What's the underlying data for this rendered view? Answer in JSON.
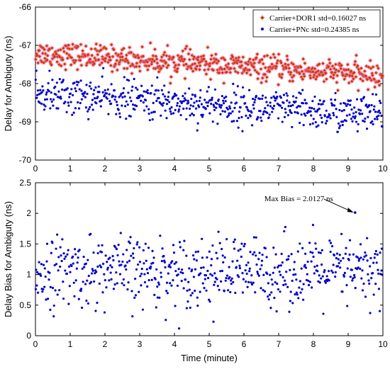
{
  "chart_data": [
    {
      "type": "scatter",
      "title": "",
      "xlabel": "",
      "ylabel": "Delay for Ambiguty (ns)",
      "xlim": [
        0,
        10
      ],
      "ylim": [
        -70,
        -66
      ],
      "xticks": [
        "0",
        "1",
        "2",
        "3",
        "4",
        "5",
        "6",
        "7",
        "8",
        "9",
        "10"
      ],
      "yticks": [
        "-70",
        "-69",
        "-68",
        "-67",
        "-66"
      ],
      "grid": false,
      "legend_position": "top-right",
      "series": [
        {
          "name": "Carrier+DOR1 std=0.16027 ns",
          "color": "#cc3300",
          "marker": "star",
          "x_range": [
            0,
            10
          ],
          "count": 600,
          "trend_start": -67.2,
          "trend_end": -67.8,
          "std": 0.16027
        },
        {
          "name": "Carrier+PNc std=0.24385 ns",
          "color": "#0000cc",
          "marker": "dot",
          "x_range": [
            0,
            10
          ],
          "count": 600,
          "trend_start": -68.25,
          "trend_end": -68.85,
          "std": 0.24385
        }
      ]
    },
    {
      "type": "scatter",
      "title": "",
      "xlabel": "Time (minute)",
      "ylabel": "Delay Bias for Ambiguty (ns)",
      "xlim": [
        0,
        10
      ],
      "ylim": [
        0,
        2.5
      ],
      "xticks": [
        "0",
        "1",
        "2",
        "3",
        "4",
        "5",
        "6",
        "7",
        "8",
        "9",
        "10"
      ],
      "yticks": [
        "0",
        "0.5",
        "1",
        "1.5",
        "2",
        "2.5"
      ],
      "grid": false,
      "series": [
        {
          "color": "#0000cc",
          "marker": "dot",
          "x_range": [
            0,
            10
          ],
          "count": 600,
          "mean": 1.05,
          "std": 0.28
        }
      ],
      "annotation": {
        "text": "Max Bias = 2.0127 ns",
        "x": 9.2,
        "y": 2.0127
      }
    }
  ]
}
